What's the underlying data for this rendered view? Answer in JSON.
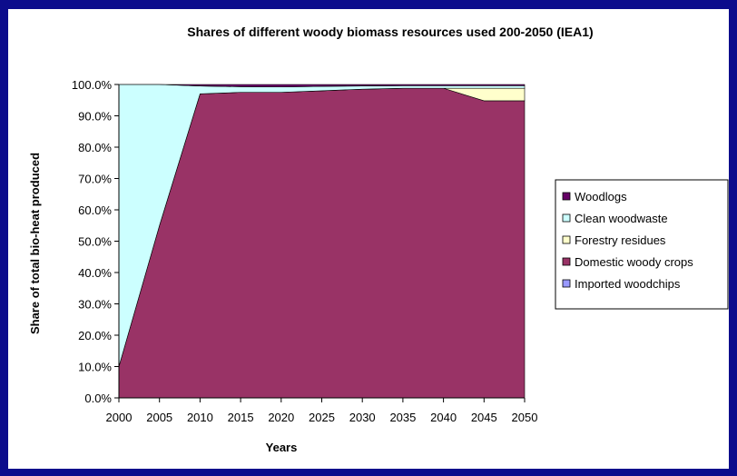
{
  "chart_data": {
    "type": "area",
    "stacked": true,
    "percent": true,
    "title": "Shares of different woody biomass resources used 200-2050 (IEA1)",
    "xlabel": "Years",
    "ylabel": "Share of total bio-heat produced",
    "x": [
      "2000",
      "2005",
      "2010",
      "2015",
      "2020",
      "2025",
      "2030",
      "2035",
      "2040",
      "2045",
      "2050"
    ],
    "ylim": [
      0,
      100
    ],
    "y_ticks": [
      "0.0%",
      "10.0%",
      "20.0%",
      "30.0%",
      "40.0%",
      "50.0%",
      "60.0%",
      "70.0%",
      "80.0%",
      "90.0%",
      "100.0%"
    ],
    "legend_position": "right",
    "series": [
      {
        "name": "Imported woodchips",
        "color": "#9999ff",
        "values": [
          0,
          0,
          0,
          0,
          0,
          0,
          0,
          0,
          0,
          0,
          0
        ]
      },
      {
        "name": "Domestic woody crops",
        "color": "#993366",
        "values": [
          10,
          55,
          97,
          97.5,
          97.5,
          98,
          98.5,
          98.8,
          98.8,
          94.8,
          94.8
        ]
      },
      {
        "name": "Forestry residues",
        "color": "#ffffcc",
        "values": [
          0,
          0,
          0,
          0,
          0,
          0,
          0,
          0,
          0,
          4,
          4
        ]
      },
      {
        "name": "Clean woodwaste",
        "color": "#ccffff",
        "values": [
          90,
          45,
          2.5,
          1.8,
          1.7,
          1.4,
          1.0,
          0.8,
          0.8,
          0.8,
          0.8
        ]
      },
      {
        "name": "Woodlogs",
        "color": "#660066",
        "values": [
          0,
          0,
          0.5,
          0.7,
          0.8,
          0.6,
          0.5,
          0.4,
          0.4,
          0.4,
          0.4
        ]
      }
    ],
    "legend_order": [
      "Woodlogs",
      "Clean woodwaste",
      "Forestry residues",
      "Domestic woody crops",
      "Imported woodchips"
    ]
  }
}
